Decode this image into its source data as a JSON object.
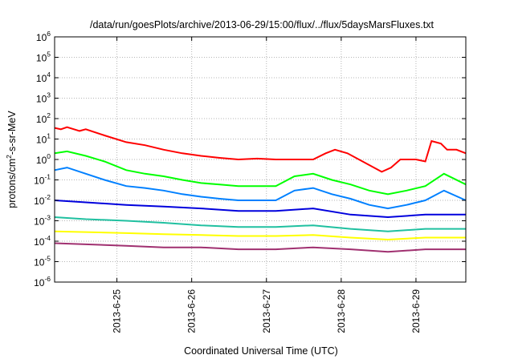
{
  "chart_data": {
    "type": "line",
    "title": "/data/run/goesPlots/archive/2013-06-29/15:00/flux/../flux/5daysMarsFluxes.txt",
    "xlabel": "Coordinated Universal Time (UTC)",
    "ylabel_parts": {
      "before": "protons/cm",
      "sup": "2",
      "after": "-s-sr-MeV"
    },
    "y_scale": "log",
    "ylim": [
      1e-06,
      1000000.0
    ],
    "y_ticks": [
      {
        "base": "10",
        "exp": "-6"
      },
      {
        "base": "10",
        "exp": "-5"
      },
      {
        "base": "10",
        "exp": "-4"
      },
      {
        "base": "10",
        "exp": "-3"
      },
      {
        "base": "10",
        "exp": "-2"
      },
      {
        "base": "10",
        "exp": "-1"
      },
      {
        "base": "10",
        "exp": "0"
      },
      {
        "base": "10",
        "exp": "1"
      },
      {
        "base": "10",
        "exp": "2"
      },
      {
        "base": "10",
        "exp": "3"
      },
      {
        "base": "10",
        "exp": "4"
      },
      {
        "base": "10",
        "exp": "5"
      },
      {
        "base": "10",
        "exp": "6"
      }
    ],
    "xlim": [
      "2013-06-24 04:00",
      "2013-06-29 16:00"
    ],
    "x_ticks": [
      "2013-6-25",
      "2013-6-26",
      "2013-6-27",
      "2013-6-28",
      "2013-6-29"
    ],
    "grid": true,
    "legend": "none",
    "series": [
      {
        "color": "#ff0000",
        "x": [
          "2013-06-24 04:00",
          "2013-06-24 06:00",
          "2013-06-24 08:00",
          "2013-06-24 12:00",
          "2013-06-24 14:00",
          "2013-06-24 20:00",
          "2013-06-25 03:00",
          "2013-06-25 09:00",
          "2013-06-25 15:00",
          "2013-06-25 21:00",
          "2013-06-26 03:00",
          "2013-06-26 09:00",
          "2013-06-26 15:00",
          "2013-06-26 21:00",
          "2013-06-27 03:00",
          "2013-06-27 09:00",
          "2013-06-27 15:00",
          "2013-06-27 19:00",
          "2013-06-27 22:00",
          "2013-06-28 02:00",
          "2013-06-28 13:00",
          "2013-06-28 16:00",
          "2013-06-28 19:00",
          "2013-06-29 00:00",
          "2013-06-29 03:00",
          "2013-06-29 05:00",
          "2013-06-29 08:00",
          "2013-06-29 10:00",
          "2013-06-29 13:00",
          "2013-06-29 16:00"
        ],
        "y": [
          35,
          30,
          38,
          25,
          30,
          15,
          7,
          5,
          3,
          2,
          1.5,
          1.2,
          1,
          1.1,
          1,
          1,
          1,
          2,
          3,
          2,
          0.25,
          0.4,
          1,
          1,
          0.8,
          8,
          6,
          3,
          3,
          2
        ]
      },
      {
        "color": "#00ff00",
        "x": [
          "2013-06-24 04:00",
          "2013-06-24 08:00",
          "2013-06-24 14:00",
          "2013-06-24 20:00",
          "2013-06-25 03:00",
          "2013-06-25 09:00",
          "2013-06-25 15:00",
          "2013-06-25 21:00",
          "2013-06-26 03:00",
          "2013-06-26 09:00",
          "2013-06-26 15:00",
          "2013-06-26 21:00",
          "2013-06-27 03:00",
          "2013-06-27 09:00",
          "2013-06-27 15:00",
          "2013-06-27 21:00",
          "2013-06-28 03:00",
          "2013-06-28 09:00",
          "2013-06-28 15:00",
          "2013-06-28 21:00",
          "2013-06-29 03:00",
          "2013-06-29 09:00",
          "2013-06-29 16:00"
        ],
        "y": [
          2,
          2.5,
          1.5,
          0.8,
          0.3,
          0.2,
          0.15,
          0.1,
          0.07,
          0.06,
          0.05,
          0.05,
          0.05,
          0.15,
          0.2,
          0.1,
          0.06,
          0.03,
          0.02,
          0.03,
          0.05,
          0.2,
          0.06
        ]
      },
      {
        "color": "#0080ff",
        "x": [
          "2013-06-24 04:00",
          "2013-06-24 08:00",
          "2013-06-24 14:00",
          "2013-06-24 20:00",
          "2013-06-25 03:00",
          "2013-06-25 09:00",
          "2013-06-25 15:00",
          "2013-06-25 21:00",
          "2013-06-26 03:00",
          "2013-06-26 09:00",
          "2013-06-26 15:00",
          "2013-06-26 21:00",
          "2013-06-27 03:00",
          "2013-06-27 09:00",
          "2013-06-27 15:00",
          "2013-06-27 21:00",
          "2013-06-28 03:00",
          "2013-06-28 09:00",
          "2013-06-28 15:00",
          "2013-06-28 21:00",
          "2013-06-29 03:00",
          "2013-06-29 09:00",
          "2013-06-29 16:00"
        ],
        "y": [
          0.3,
          0.4,
          0.2,
          0.1,
          0.05,
          0.04,
          0.03,
          0.02,
          0.015,
          0.012,
          0.01,
          0.01,
          0.01,
          0.03,
          0.04,
          0.02,
          0.012,
          0.006,
          0.004,
          0.006,
          0.01,
          0.03,
          0.01
        ]
      },
      {
        "color": "#0000dd",
        "x": [
          "2013-06-24 04:00",
          "2013-06-24 14:00",
          "2013-06-25 03:00",
          "2013-06-25 15:00",
          "2013-06-26 03:00",
          "2013-06-26 15:00",
          "2013-06-27 03:00",
          "2013-06-27 15:00",
          "2013-06-28 03:00",
          "2013-06-28 15:00",
          "2013-06-29 03:00",
          "2013-06-29 16:00"
        ],
        "y": [
          0.01,
          0.008,
          0.006,
          0.005,
          0.004,
          0.003,
          0.003,
          0.004,
          0.002,
          0.0015,
          0.002,
          0.002
        ]
      },
      {
        "color": "#20c0a0",
        "x": [
          "2013-06-24 04:00",
          "2013-06-24 14:00",
          "2013-06-25 03:00",
          "2013-06-25 15:00",
          "2013-06-26 03:00",
          "2013-06-26 15:00",
          "2013-06-27 03:00",
          "2013-06-27 15:00",
          "2013-06-28 03:00",
          "2013-06-28 15:00",
          "2013-06-29 03:00",
          "2013-06-29 16:00"
        ],
        "y": [
          0.0015,
          0.0012,
          0.001,
          0.0008,
          0.0006,
          0.0005,
          0.0005,
          0.0006,
          0.0004,
          0.0003,
          0.0004,
          0.0004
        ]
      },
      {
        "color": "#ffff00",
        "x": [
          "2013-06-24 04:00",
          "2013-06-24 14:00",
          "2013-06-25 03:00",
          "2013-06-25 15:00",
          "2013-06-26 03:00",
          "2013-06-26 15:00",
          "2013-06-27 03:00",
          "2013-06-27 15:00",
          "2013-06-28 03:00",
          "2013-06-28 15:00",
          "2013-06-29 03:00",
          "2013-06-29 16:00"
        ],
        "y": [
          0.0003,
          0.00028,
          0.00025,
          0.00022,
          0.0002,
          0.00018,
          0.00018,
          0.0002,
          0.00015,
          0.00012,
          0.00015,
          0.00015
        ]
      },
      {
        "color": "#a03070",
        "x": [
          "2013-06-24 04:00",
          "2013-06-24 14:00",
          "2013-06-25 03:00",
          "2013-06-25 15:00",
          "2013-06-26 03:00",
          "2013-06-26 15:00",
          "2013-06-27 03:00",
          "2013-06-27 15:00",
          "2013-06-28 03:00",
          "2013-06-28 15:00",
          "2013-06-29 03:00",
          "2013-06-29 16:00"
        ],
        "y": [
          8e-05,
          7e-05,
          6e-05,
          5e-05,
          5e-05,
          4e-05,
          4e-05,
          5e-05,
          4e-05,
          3e-05,
          4e-05,
          4e-05
        ]
      }
    ]
  }
}
